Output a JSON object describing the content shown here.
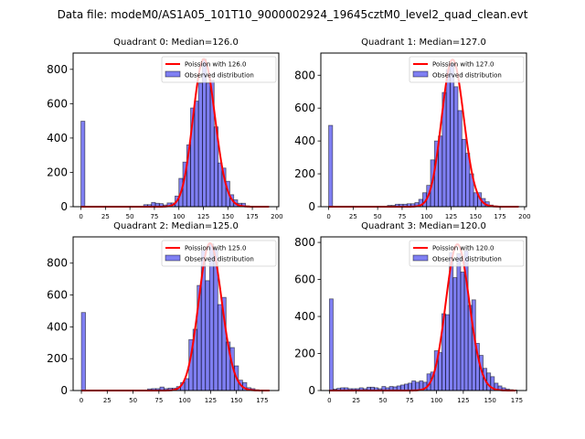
{
  "chart_data": {
    "suptitle": "Data file: modeM0/AS1A05_101T10_9000002924_19645cztM0_level2_quad_clean.evt",
    "panels": [
      {
        "type": "bar",
        "title": "Quadrant 0: Median=126.0",
        "xlim": [
          -8,
          202
        ],
        "ylim": [
          0,
          895
        ],
        "xticks": [
          0,
          25,
          50,
          75,
          100,
          125,
          150,
          175,
          200
        ],
        "yticks": [
          0,
          200,
          400,
          600,
          800
        ],
        "legend": [
          "Poission with 126.0",
          "Observed distribution"
        ],
        "legend_position": "upper-right",
        "poisson_mean": 126.0,
        "poisson_peak": 860,
        "poisson_range": [
          0,
          192
        ],
        "bin_width": 4,
        "bins": [
          [
            0,
            498
          ],
          [
            64,
            12
          ],
          [
            68,
            12
          ],
          [
            72,
            25
          ],
          [
            76,
            20
          ],
          [
            80,
            18
          ],
          [
            84,
            10
          ],
          [
            88,
            22
          ],
          [
            92,
            22
          ],
          [
            96,
            62
          ],
          [
            100,
            165
          ],
          [
            104,
            260
          ],
          [
            108,
            360
          ],
          [
            112,
            575
          ],
          [
            116,
            615
          ],
          [
            120,
            720
          ],
          [
            124,
            860
          ],
          [
            128,
            720
          ],
          [
            132,
            735
          ],
          [
            136,
            465
          ],
          [
            140,
            255
          ],
          [
            144,
            225
          ],
          [
            148,
            148
          ],
          [
            152,
            70
          ],
          [
            156,
            40
          ],
          [
            160,
            20
          ],
          [
            164,
            20
          ],
          [
            168,
            5
          ],
          [
            172,
            3
          ],
          [
            176,
            3
          ]
        ]
      },
      {
        "type": "bar",
        "title": "Quadrant 1: Median=127.0",
        "xlim": [
          -8,
          202
        ],
        "ylim": [
          0,
          935
        ],
        "xticks": [
          0,
          25,
          50,
          75,
          100,
          125,
          150,
          175,
          200
        ],
        "yticks": [
          0,
          200,
          400,
          600,
          800
        ],
        "legend": [
          "Poission with 127.0",
          "Observed distribution"
        ],
        "legend_position": "upper-right",
        "poisson_mean": 127.0,
        "poisson_peak": 895,
        "poisson_range": [
          0,
          194
        ],
        "bin_width": 4,
        "bins": [
          [
            0,
            495
          ],
          [
            60,
            8
          ],
          [
            64,
            8
          ],
          [
            68,
            15
          ],
          [
            72,
            15
          ],
          [
            76,
            15
          ],
          [
            80,
            18
          ],
          [
            84,
            18
          ],
          [
            88,
            25
          ],
          [
            92,
            45
          ],
          [
            96,
            85
          ],
          [
            100,
            130
          ],
          [
            104,
            285
          ],
          [
            108,
            400
          ],
          [
            112,
            430
          ],
          [
            116,
            695
          ],
          [
            120,
            835
          ],
          [
            124,
            870
          ],
          [
            128,
            730
          ],
          [
            132,
            585
          ],
          [
            136,
            410
          ],
          [
            140,
            325
          ],
          [
            144,
            200
          ],
          [
            148,
            85
          ],
          [
            152,
            85
          ],
          [
            156,
            50
          ],
          [
            160,
            30
          ],
          [
            164,
            10
          ],
          [
            168,
            5
          ],
          [
            172,
            3
          ],
          [
            188,
            3
          ]
        ]
      },
      {
        "type": "bar",
        "title": "Quadrant 2: Median=125.0",
        "xlim": [
          -8,
          191
        ],
        "ylim": [
          0,
          965
        ],
        "xticks": [
          0,
          25,
          50,
          75,
          100,
          125,
          150,
          175
        ],
        "yticks": [
          0,
          200,
          400,
          600,
          800
        ],
        "legend": [
          "Poission with 125.0",
          "Observed distribution"
        ],
        "legend_position": "upper-right",
        "poisson_mean": 125.0,
        "poisson_peak": 925,
        "poisson_range": [
          0,
          182
        ],
        "bin_width": 4,
        "bins": [
          [
            0,
            490
          ],
          [
            64,
            10
          ],
          [
            68,
            12
          ],
          [
            72,
            12
          ],
          [
            76,
            22
          ],
          [
            80,
            12
          ],
          [
            84,
            15
          ],
          [
            88,
            15
          ],
          [
            92,
            25
          ],
          [
            96,
            50
          ],
          [
            100,
            75
          ],
          [
            104,
            320
          ],
          [
            108,
            385
          ],
          [
            112,
            660
          ],
          [
            116,
            880
          ],
          [
            120,
            690
          ],
          [
            124,
            920
          ],
          [
            128,
            890
          ],
          [
            132,
            540
          ],
          [
            136,
            585
          ],
          [
            140,
            305
          ],
          [
            144,
            270
          ],
          [
            148,
            155
          ],
          [
            152,
            65
          ],
          [
            156,
            50
          ],
          [
            160,
            18
          ],
          [
            164,
            12
          ],
          [
            168,
            5
          ]
        ]
      },
      {
        "type": "bar",
        "title": "Quadrant 3: Median=120.0",
        "xlim": [
          -8,
          184
        ],
        "ylim": [
          0,
          830
        ],
        "xticks": [
          0,
          25,
          50,
          75,
          100,
          125,
          150,
          175
        ],
        "yticks": [
          0,
          200,
          400,
          600,
          800
        ],
        "legend": [
          "Poission with 120.0",
          "Observed distribution"
        ],
        "legend_position": "upper-right",
        "poisson_mean": 120.0,
        "poisson_peak": 790,
        "poisson_range": [
          0,
          174
        ],
        "bin_width": 3.5,
        "bins": [
          [
            0,
            495
          ],
          [
            3.5,
            8
          ],
          [
            7,
            12
          ],
          [
            10.5,
            15
          ],
          [
            14,
            15
          ],
          [
            17.5,
            10
          ],
          [
            21,
            10
          ],
          [
            24.5,
            10
          ],
          [
            28,
            15
          ],
          [
            31.5,
            10
          ],
          [
            35,
            18
          ],
          [
            38.5,
            18
          ],
          [
            42,
            15
          ],
          [
            45.5,
            10
          ],
          [
            49,
            22
          ],
          [
            52.5,
            15
          ],
          [
            56,
            22
          ],
          [
            59.5,
            20
          ],
          [
            63,
            25
          ],
          [
            66.5,
            30
          ],
          [
            70,
            35
          ],
          [
            73.5,
            40
          ],
          [
            77,
            52
          ],
          [
            80.5,
            45
          ],
          [
            84,
            52
          ],
          [
            87.5,
            45
          ],
          [
            91,
            90
          ],
          [
            94.5,
            100
          ],
          [
            98,
            215
          ],
          [
            101.5,
            205
          ],
          [
            105,
            415
          ],
          [
            108.5,
            410
          ],
          [
            112,
            745
          ],
          [
            115.5,
            610
          ],
          [
            119,
            740
          ],
          [
            122.5,
            640
          ],
          [
            126,
            755
          ],
          [
            129.5,
            460
          ],
          [
            133,
            490
          ],
          [
            136.5,
            255
          ],
          [
            140,
            190
          ],
          [
            143.5,
            120
          ],
          [
            147,
            95
          ],
          [
            150.5,
            75
          ],
          [
            154,
            40
          ],
          [
            157.5,
            25
          ],
          [
            161,
            15
          ],
          [
            164.5,
            8
          ],
          [
            168,
            5
          ],
          [
            171.5,
            3
          ]
        ]
      }
    ]
  }
}
